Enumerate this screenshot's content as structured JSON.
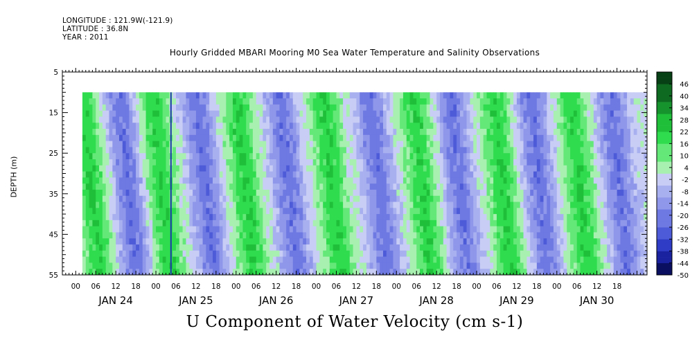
{
  "header": {
    "longitude": "LONGITUDE : 121.9W(-121.9)",
    "latitude": "LATITUDE : 36.8N",
    "year": "YEAR : 2011"
  },
  "chart_data": {
    "type": "heatmap",
    "title": "Hourly Gridded MBARI Mooring M0 Sea Water Temperature and Salinity Observations",
    "variable_title": "U Component of Water Velocity (cm s-1)",
    "ylabel": "DEPTH (m)",
    "y_axis": {
      "range": [
        5,
        55
      ],
      "inverted": true,
      "major_ticks": [
        5,
        15,
        25,
        35,
        45,
        55
      ],
      "minor_step": 1,
      "data_range": [
        10,
        55
      ]
    },
    "x_axis": {
      "hour_labels": [
        "00",
        "06",
        "12",
        "18",
        "00",
        "06",
        "12",
        "18",
        "00",
        "06",
        "12",
        "18",
        "00",
        "06",
        "12",
        "18",
        "00",
        "06",
        "12",
        "18",
        "00",
        "06",
        "12",
        "18",
        "00",
        "06",
        "12",
        "18"
      ],
      "day_labels": [
        "JAN 24",
        "JAN 25",
        "JAN 26",
        "JAN 27",
        "JAN 28",
        "JAN 29",
        "JAN 30"
      ],
      "start": "JAN 23 20:00",
      "end": "JAN 30 23:00",
      "data_start": "JAN 24 02:00"
    },
    "colorbar": {
      "labels": [
        "46",
        "40",
        "34",
        "28",
        "22",
        "16",
        "10",
        "4",
        "-2",
        "-8",
        "-14",
        "-20",
        "-26",
        "-32",
        "-38",
        "-44",
        "-50"
      ],
      "min": -50,
      "max": 52,
      "step": 3
    },
    "bands": [
      {
        "center_hour": 4,
        "sign": 1
      },
      {
        "center_hour": 15,
        "sign": -1
      },
      {
        "center_hour": 25,
        "sign": 1
      },
      {
        "center_hour": 38,
        "sign": -1
      },
      {
        "center_hour": 50,
        "sign": 1
      },
      {
        "center_hour": 63,
        "sign": -1
      },
      {
        "center_hour": 76,
        "sign": 1
      },
      {
        "center_hour": 90,
        "sign": -1
      },
      {
        "center_hour": 103,
        "sign": 1
      },
      {
        "center_hour": 114,
        "sign": -1
      },
      {
        "center_hour": 127,
        "sign": 1
      },
      {
        "center_hour": 138,
        "sign": -1
      },
      {
        "center_hour": 150,
        "sign": 1
      },
      {
        "center_hour": 162,
        "sign": -1
      }
    ]
  }
}
